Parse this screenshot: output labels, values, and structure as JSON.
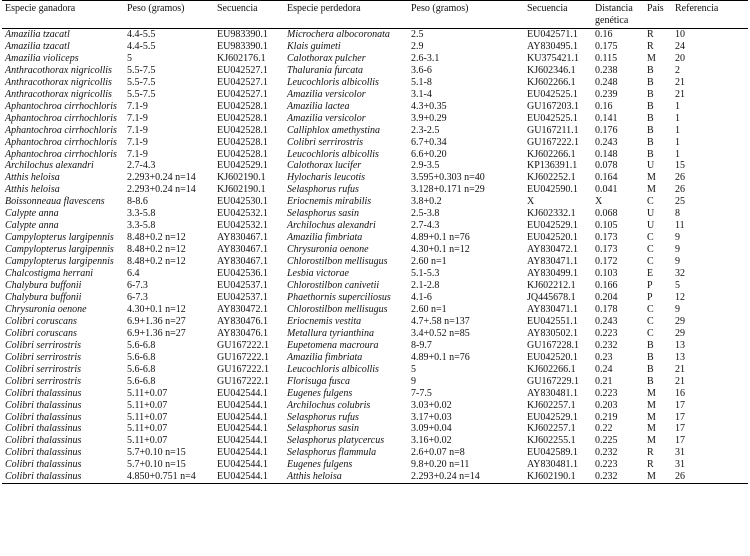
{
  "headers": [
    "Especie ganadora",
    "Peso (gramos)",
    "Secuencia",
    "Especie perdedora",
    "Peso (gramos)",
    "Secuencia",
    "Distancia genética",
    "País",
    "Referencia"
  ],
  "rows": [
    [
      "Amazilia tzacatl",
      "4.4-5.5",
      "EU983390.1",
      "Microchera albocoronata",
      "2.5",
      "EU042571.1",
      "0.16",
      "R",
      "10"
    ],
    [
      "Amazilia tzacatl",
      "4.4-5.5",
      "EU983390.1",
      "Klais guimeti",
      "2.9",
      "AY830495.1",
      "0.175",
      "R",
      "24"
    ],
    [
      "Amazilia violiceps",
      "5",
      "KJ602176.1",
      "Calothorax pulcher",
      "2.6-3.1",
      "KU375421.1",
      "0.115",
      "M",
      "20"
    ],
    [
      "Anthracothorax nigricollis",
      "5.5-7.5",
      "EU042527.1",
      "Thalurania furcata",
      "3.6-6",
      "KJ602346.1",
      "0.238",
      "B",
      "2"
    ],
    [
      "Anthracothorax nigricollis",
      "5.5-7.5",
      "EU042527.1",
      "Leucochloris albicollis",
      "5.1-8",
      "KJ602266.1",
      "0.248",
      "B",
      "21"
    ],
    [
      "Anthracothorax nigricollis",
      "5.5-7.5",
      "EU042527.1",
      "Amazilia versicolor",
      "3.1-4",
      "EU042525.1",
      "0.239",
      "B",
      "21"
    ],
    [
      "Aphantochroa cirrhochloris",
      "7.1-9",
      "EU042528.1",
      "Amazilia lactea",
      "4.3+0.35",
      "GU167203.1",
      "0.16",
      "B",
      "1"
    ],
    [
      "Aphantochroa cirrhochloris",
      "7.1-9",
      "EU042528.1",
      "Amazilia versicolor",
      "3.9+0.29",
      "EU042525.1",
      "0.141",
      "B",
      "1"
    ],
    [
      "Aphantochroa cirrhochloris",
      "7.1-9",
      "EU042528.1",
      "Calliphlox amethystina",
      "2.3-2.5",
      "GU167211.1",
      "0.176",
      "B",
      "1"
    ],
    [
      "Aphantochroa cirrhochloris",
      "7.1-9",
      "EU042528.1",
      "Colibri serrirostris",
      "6.7+0.34",
      "GU167222.1",
      "0.243",
      "B",
      "1"
    ],
    [
      "Aphantochroa cirrhochloris",
      "7.1-9",
      "EU042528.1",
      "Leucochloris albicollis",
      "6.6+0.20",
      "KJ602266.1",
      "0.148",
      "B",
      "1"
    ],
    [
      "Archilochus alexandri",
      "2.7-4.3",
      "EU042529.1",
      "Calothorax lucifer",
      "2.9-3.5",
      "KP136391.1",
      "0.078",
      "U",
      "15"
    ],
    [
      "Atthis heloisa",
      "2.293+0.24 n=14",
      "KJ602190.1",
      "Hylocharis leucotis",
      "3.595+0.303 n=40",
      "KJ602252.1",
      "0.164",
      "M",
      "26"
    ],
    [
      "Atthis heloisa",
      "2.293+0.24 n=14",
      "KJ602190.1",
      "Selasphorus rufus",
      "3.128+0.171 n=29",
      "EU042590.1",
      "0.041",
      "M",
      "26"
    ],
    [
      "Boissonneaua flavescens",
      "8-8.6",
      "EU042530.1",
      "Eriocnemis mirabilis",
      "3.8+0.2",
      "X",
      "X",
      "C",
      "25"
    ],
    [
      "Calypte anna",
      "3.3-5.8",
      "EU042532.1",
      "Selasphorus sasin",
      "2.5-3.8",
      "KJ602332.1",
      "0.068",
      "U",
      "8"
    ],
    [
      "Calypte anna",
      "3.3-5.8",
      "EU042532.1",
      "Archilochus alexandri",
      "2.7-4.3",
      "EU042529.1",
      "0.105",
      "U",
      "11"
    ],
    [
      "Campylopterus largipennis",
      "8.48+0.2 n=12",
      "AY830467.1",
      "Amazilia fimbriata",
      "4.89+0.1 n=76",
      "EU042520.1",
      "0.173",
      "C",
      "9"
    ],
    [
      "Campylopterus largipennis",
      "8.48+0.2 n=12",
      "AY830467.1",
      "Chrysuronia oenone",
      "4.30+0.1 n=12",
      "AY830472.1",
      "0.173",
      "C",
      "9"
    ],
    [
      "Campylopterus largipennis",
      "8.48+0.2 n=12",
      "AY830467.1",
      "Chlorostilbon mellisugus",
      "2.60 n=1",
      "AY830471.1",
      "0.172",
      "C",
      "9"
    ],
    [
      "Chalcostigma herrani",
      "6.4",
      "EU042536.1",
      "Lesbia victorae",
      "5.1-5.3",
      "AY830499.1",
      "0.103",
      "E",
      "32"
    ],
    [
      "Chalybura buffonii",
      "6-7.3",
      "EU042537.1",
      "Chlorostilbon canivetii",
      "2.1-2.8",
      "KJ602212.1",
      "0.166",
      "P",
      "5"
    ],
    [
      "Chalybura buffonii",
      "6-7.3",
      "EU042537.1",
      "Phaethornis superciliosus",
      "4.1-6",
      "JQ445678.1",
      "0.204",
      "P",
      "12"
    ],
    [
      "Chrysuronia oenone",
      "4.30+0.1 n=12",
      "AY830472.1",
      "Chlorostilbon mellisugus",
      "2.60 n=1",
      "AY830471.1",
      "0.178",
      "C",
      "9"
    ],
    [
      "Colibri coruscans",
      "6.9+1.36 n=27",
      "AY830476.1",
      "Eriocnemis vestita",
      "4.7+.58 n=137",
      "EU042551.1",
      "0.243",
      "C",
      "29"
    ],
    [
      "Colibri coruscans",
      "6.9+1.36 n=27",
      "AY830476.1",
      "Metallura tyrianthina",
      "3.4+0.52 n=85",
      "AY830502.1",
      "0.223",
      "C",
      "29"
    ],
    [
      "Colibri serrirostris",
      "5.6-6.8",
      "GU167222.1",
      "Eupetomena macroura",
      "8-9.7",
      "GU167228.1",
      "0.232",
      "B",
      "13"
    ],
    [
      "Colibri serrirostris",
      "5.6-6.8",
      "GU167222.1",
      "Amazilia fimbriata",
      "4.89+0.1 n=76",
      "EU042520.1",
      "0.23",
      "B",
      "13"
    ],
    [
      "Colibri serrirostris",
      "5.6-6.8",
      "GU167222.1",
      "Leucochloris albicollis",
      "5",
      "KJ602266.1",
      "0.24",
      "B",
      "21"
    ],
    [
      "Colibri serrirostris",
      "5.6-6.8",
      "GU167222.1",
      "Florisuga fusca",
      "9",
      "GU167229.1",
      "0.21",
      "B",
      "21"
    ],
    [
      "Colibri thalassinus",
      "5.11+0.07",
      "EU042544.1",
      "Eugenes fulgens",
      "7-7.5",
      "AY830481.1",
      "0.223",
      "M",
      "16"
    ],
    [
      "Colibri thalassinus",
      "5.11+0.07",
      "EU042544.1",
      "Archilochus colubris",
      "3.03+0.02",
      "KJ602257.1",
      "0.203",
      "M",
      "17"
    ],
    [
      "Colibri thalassinus",
      "5.11+0.07",
      "EU042544.1",
      "Selasphorus rufus",
      "3.17+0.03",
      "EU042529.1",
      "0.219",
      "M",
      "17"
    ],
    [
      "Colibri thalassinus",
      "5.11+0.07",
      "EU042544.1",
      "Selasphorus sasin",
      "3.09+0.04",
      "KJ602257.1",
      "0.22",
      "M",
      "17"
    ],
    [
      "Colibri thalassinus",
      "5.11+0.07",
      "EU042544.1",
      "Selasphorus platycercus",
      "3.16+0.02",
      "KJ602255.1",
      "0.225",
      "M",
      "17"
    ],
    [
      "Colibri thalassinus",
      "5.7+0.10 n=15",
      "EU042544.1",
      "Selasphorus flammula",
      "2.6+0.07 n=8",
      "EU042589.1",
      "0.232",
      "R",
      "31"
    ],
    [
      "Colibri thalassinus",
      "5.7+0.10 n=15",
      "EU042544.1",
      "Eugenes fulgens",
      "9.8+0.20 n=11",
      "AY830481.1",
      "0.223",
      "R",
      "31"
    ],
    [
      "Colibri thalassinus",
      "4.850+0.751 n=4",
      "EU042544.1",
      "Atthis heloisa",
      "2.293+0.24 n=14",
      "KJ602190.1",
      "0.232",
      "M",
      "26"
    ]
  ]
}
